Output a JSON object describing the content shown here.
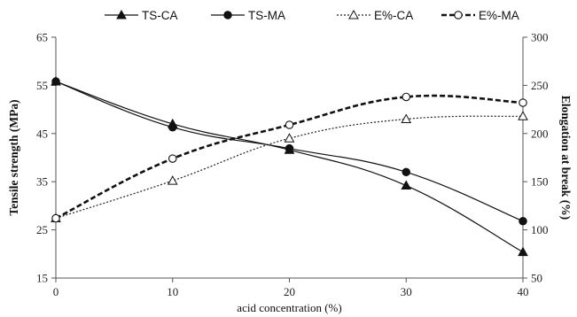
{
  "chart_data": {
    "type": "line",
    "title": "",
    "xlabel": "acid concentration (%)",
    "ylabel": "Tensile strength (MPa)",
    "y2label": "Elongation at break (%)",
    "x": [
      0,
      10,
      20,
      30,
      40
    ],
    "xlim": [
      0,
      40
    ],
    "xticks": [
      "0",
      "10",
      "20",
      "30",
      "40"
    ],
    "ylim": [
      15,
      65
    ],
    "yticks": [
      "15",
      "25",
      "35",
      "45",
      "55",
      "65"
    ],
    "y2lim": [
      50,
      300
    ],
    "y2ticks": [
      "50",
      "100",
      "150",
      "200",
      "250",
      "300"
    ],
    "grid": false,
    "legend_position": "top",
    "series": [
      {
        "name": "TS-CA",
        "axis": "left",
        "values": [
          55.8,
          47.0,
          41.6,
          34.2,
          20.4
        ],
        "style": "solid-thin",
        "marker": "triangle-filled"
      },
      {
        "name": "TS-MA",
        "axis": "left",
        "values": [
          55.8,
          46.3,
          41.9,
          37.0,
          26.8
        ],
        "style": "solid-thin",
        "marker": "circle-filled"
      },
      {
        "name": "E%-CA",
        "axis": "right",
        "values": [
          112,
          151,
          195,
          215,
          218
        ],
        "style": "dotted",
        "marker": "triangle-open"
      },
      {
        "name": "E%-MA",
        "axis": "right",
        "values": [
          112,
          174,
          209,
          238,
          232
        ],
        "style": "dashed-thick",
        "marker": "circle-open"
      }
    ]
  }
}
